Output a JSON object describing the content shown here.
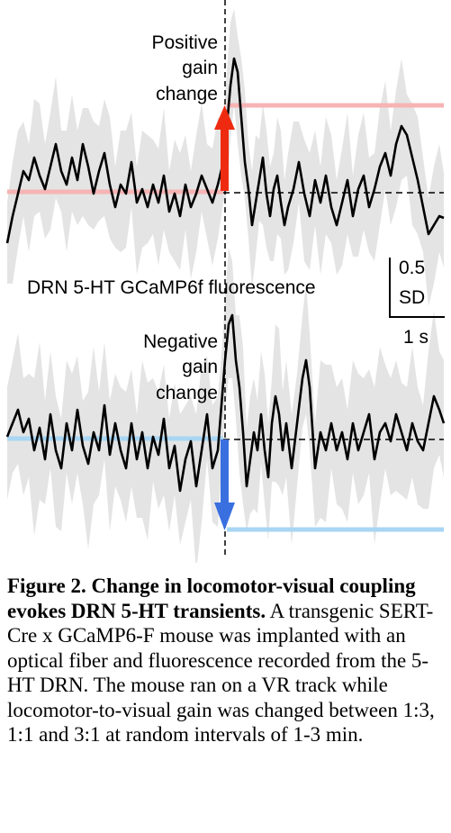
{
  "figure": {
    "top_panel": {
      "label_lines": [
        "Positive",
        "gain",
        "change"
      ]
    },
    "bottom_panel": {
      "label_lines": [
        "Negative",
        "gain",
        "change"
      ]
    },
    "signal_label": "DRN 5-HT GCaMP6f fluorescence",
    "scale_bar": {
      "y_value": "0.5",
      "y_unit": "SD",
      "x_label": "1 s"
    },
    "colors": {
      "positive_arrow": "#ee2b10",
      "negative_arrow": "#3a6fe0",
      "positive_baseline": "#f6b4b4",
      "negative_baseline": "#a9d6f4",
      "confidence_band": "#e4e4e4",
      "trace": "#000000"
    }
  },
  "caption": {
    "title": "Figure 2. Change in locomotor-visual coupling evokes DRN 5-HT transients.",
    "body": "A transgenic SERT-Cre x GCaMP6-F mouse was implanted with an optical fiber and fluorescence recorded from the 5-HT DRN. The mouse ran on a VR track while locomotor-to-visual gain was changed between 1:3, 1:1 and 3:1 at random intervals of 1-3 min."
  }
}
